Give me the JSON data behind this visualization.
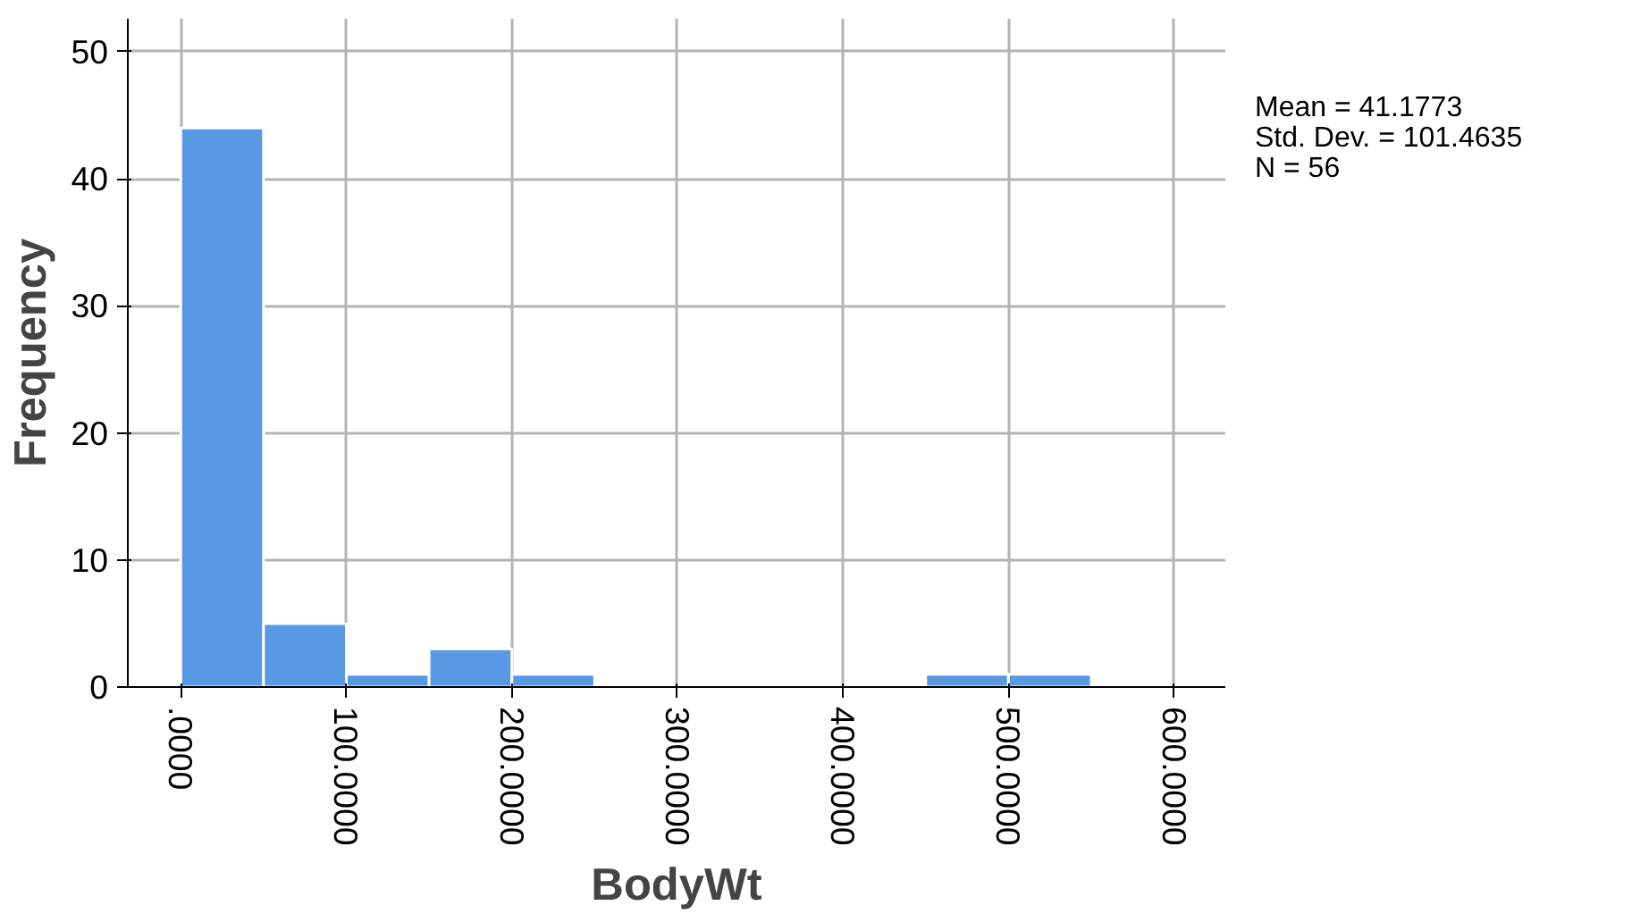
{
  "chart_data": {
    "type": "histogram",
    "xlabel": "BodyWt",
    "ylabel": "Frequency",
    "bins": [
      0,
      50,
      100,
      150,
      200,
      250,
      300,
      350,
      400,
      450,
      500,
      550,
      600
    ],
    "values": [
      44,
      5,
      1,
      3,
      1,
      0,
      0,
      0,
      0,
      1,
      1,
      0
    ],
    "color": "#5899e4",
    "xlim": [
      -32,
      631
    ],
    "ylim": [
      0,
      52.6
    ],
    "xticks": [
      {
        "value": 0,
        "label": ".0000"
      },
      {
        "value": 100,
        "label": "100.0000"
      },
      {
        "value": 200,
        "label": "200.0000"
      },
      {
        "value": 300,
        "label": "300.0000"
      },
      {
        "value": 400,
        "label": "400.0000"
      },
      {
        "value": 500,
        "label": "500.0000"
      },
      {
        "value": 600,
        "label": "600.0000"
      }
    ],
    "yticks": [
      0,
      10,
      20,
      30,
      40,
      50
    ],
    "grid": true,
    "annotations": [
      "Mean = 41.1773",
      "Std. Dev. = 101.4635",
      "N = 56"
    ]
  }
}
